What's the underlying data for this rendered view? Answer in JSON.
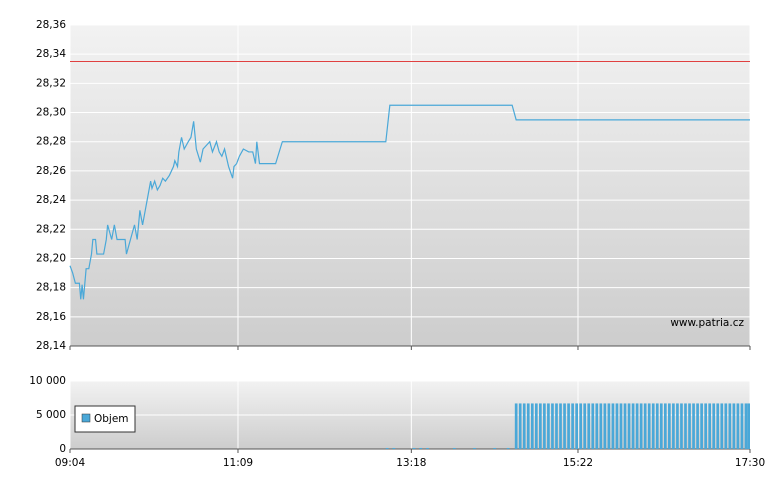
{
  "chart_data": [
    {
      "type": "line",
      "x": [
        "09:04",
        "09:06",
        "09:08",
        "09:11",
        "09:12",
        "09:13",
        "09:14",
        "09:16",
        "09:18",
        "09:20",
        "09:21",
        "09:23",
        "09:24",
        "09:29",
        "09:31",
        "09:32",
        "09:35",
        "09:37",
        "09:39",
        "09:45",
        "09:46",
        "09:49",
        "09:52",
        "09:54",
        "09:56",
        "09:58",
        "10:00",
        "10:02",
        "10:04",
        "10:05",
        "10:07",
        "10:09",
        "10:11",
        "10:13",
        "10:15",
        "10:18",
        "10:21",
        "10:22",
        "10:24",
        "10:25",
        "10:27",
        "10:29",
        "10:32",
        "10:34",
        "10:36",
        "10:38",
        "10:41",
        "10:43",
        "10:46",
        "10:48",
        "10:50",
        "10:53",
        "10:55",
        "10:57",
        "10:59",
        "11:02",
        "11:05",
        "11:06",
        "11:08",
        "11:10",
        "11:13",
        "11:17",
        "11:20",
        "11:22",
        "11:23",
        "11:25",
        "11:37",
        "11:42",
        "12:59",
        "13:02",
        "14:33",
        "14:36",
        "17:30"
      ],
      "values": [
        28.195,
        28.19,
        28.183,
        28.183,
        28.172,
        28.182,
        28.172,
        28.193,
        28.193,
        28.203,
        28.213,
        28.213,
        28.203,
        28.203,
        28.213,
        28.223,
        28.213,
        28.223,
        28.213,
        28.213,
        28.203,
        28.213,
        28.223,
        28.213,
        28.233,
        28.223,
        28.233,
        28.243,
        28.253,
        28.248,
        28.253,
        28.247,
        28.25,
        28.255,
        28.253,
        28.257,
        28.263,
        28.267,
        28.263,
        28.273,
        28.283,
        28.275,
        28.28,
        28.283,
        28.294,
        28.275,
        28.266,
        28.275,
        28.278,
        28.28,
        28.273,
        28.28,
        28.273,
        28.27,
        28.275,
        28.263,
        28.255,
        28.263,
        28.265,
        28.27,
        28.275,
        28.273,
        28.273,
        28.265,
        28.28,
        28.265,
        28.265,
        28.28,
        28.28,
        28.305,
        28.305,
        28.295,
        28.295
      ],
      "color": "#4aa8d8",
      "reference_line": {
        "value": 28.335,
        "color": "#e04040"
      },
      "xlim": [
        "09:04",
        "17:30"
      ],
      "xticks": [
        "09:04",
        "11:09",
        "13:18",
        "15:22",
        "17:30"
      ],
      "ylim": [
        28.14,
        28.36
      ],
      "yticks": [
        {
          "value": 28.14,
          "label": "28,14"
        },
        {
          "value": 28.16,
          "label": "28,16"
        },
        {
          "value": 28.18,
          "label": "28,18"
        },
        {
          "value": 28.2,
          "label": "28,20"
        },
        {
          "value": 28.22,
          "label": "28,22"
        },
        {
          "value": 28.24,
          "label": "28,24"
        },
        {
          "value": 28.26,
          "label": "28,26"
        },
        {
          "value": 28.28,
          "label": "28,28"
        },
        {
          "value": 28.3,
          "label": "28,30"
        },
        {
          "value": 28.32,
          "label": "28,32"
        },
        {
          "value": 28.34,
          "label": "28,34"
        },
        {
          "value": 28.36,
          "label": "28,36"
        }
      ],
      "grid": true,
      "annotation": "www.patria.cz"
    },
    {
      "type": "bar",
      "x": [
        "13:00",
        "13:05",
        "13:20",
        "13:25",
        "13:30",
        "13:50",
        "14:05",
        "14:20",
        "14:30",
        "14:36",
        "14:39",
        "14:42",
        "14:45",
        "14:48",
        "14:51",
        "14:54",
        "14:57",
        "15:00",
        "15:03",
        "15:06",
        "15:09",
        "15:12",
        "15:15",
        "15:18",
        "15:21",
        "15:24",
        "15:27",
        "15:30",
        "15:33",
        "15:36",
        "15:39",
        "15:42",
        "15:45",
        "15:48",
        "15:51",
        "15:54",
        "15:57",
        "16:00",
        "16:03",
        "16:06",
        "16:09",
        "16:12",
        "16:15",
        "16:18",
        "16:21",
        "16:24",
        "16:27",
        "16:30",
        "16:33",
        "16:36",
        "16:39",
        "16:42",
        "16:45",
        "16:48",
        "16:51",
        "16:54",
        "16:57",
        "17:00",
        "17:03",
        "17:06",
        "17:09",
        "17:12",
        "17:15",
        "17:18",
        "17:21",
        "17:24",
        "17:27",
        "17:30"
      ],
      "series": [
        {
          "name": "Objem",
          "color": "#4aa8d8",
          "values": [
            150,
            150,
            150,
            150,
            150,
            150,
            150,
            150,
            150,
            6700,
            6700,
            6700,
            6700,
            6700,
            6700,
            6700,
            6700,
            6700,
            6700,
            6700,
            6700,
            6700,
            6700,
            6700,
            6700,
            6700,
            6700,
            6700,
            6700,
            6700,
            6700,
            6700,
            6700,
            6700,
            6700,
            6700,
            6700,
            6700,
            6700,
            6700,
            6700,
            6700,
            6700,
            6700,
            6700,
            6700,
            6700,
            6700,
            6700,
            6700,
            6700,
            6700,
            6700,
            6700,
            6700,
            6700,
            6700,
            6700,
            6700,
            6700,
            6700,
            6700,
            6700,
            6700,
            6700,
            6700,
            6700,
            6700
          ]
        }
      ],
      "xlim": [
        "09:04",
        "17:30"
      ],
      "xticks": [
        "09:04",
        "11:09",
        "13:18",
        "15:22",
        "17:30"
      ],
      "ylim": [
        0,
        10000
      ],
      "yticks": [
        0,
        {
          "value": 5000,
          "label": "5 000"
        },
        {
          "value": 10000,
          "label": "10 000"
        }
      ],
      "grid": true,
      "legend": "left"
    }
  ]
}
